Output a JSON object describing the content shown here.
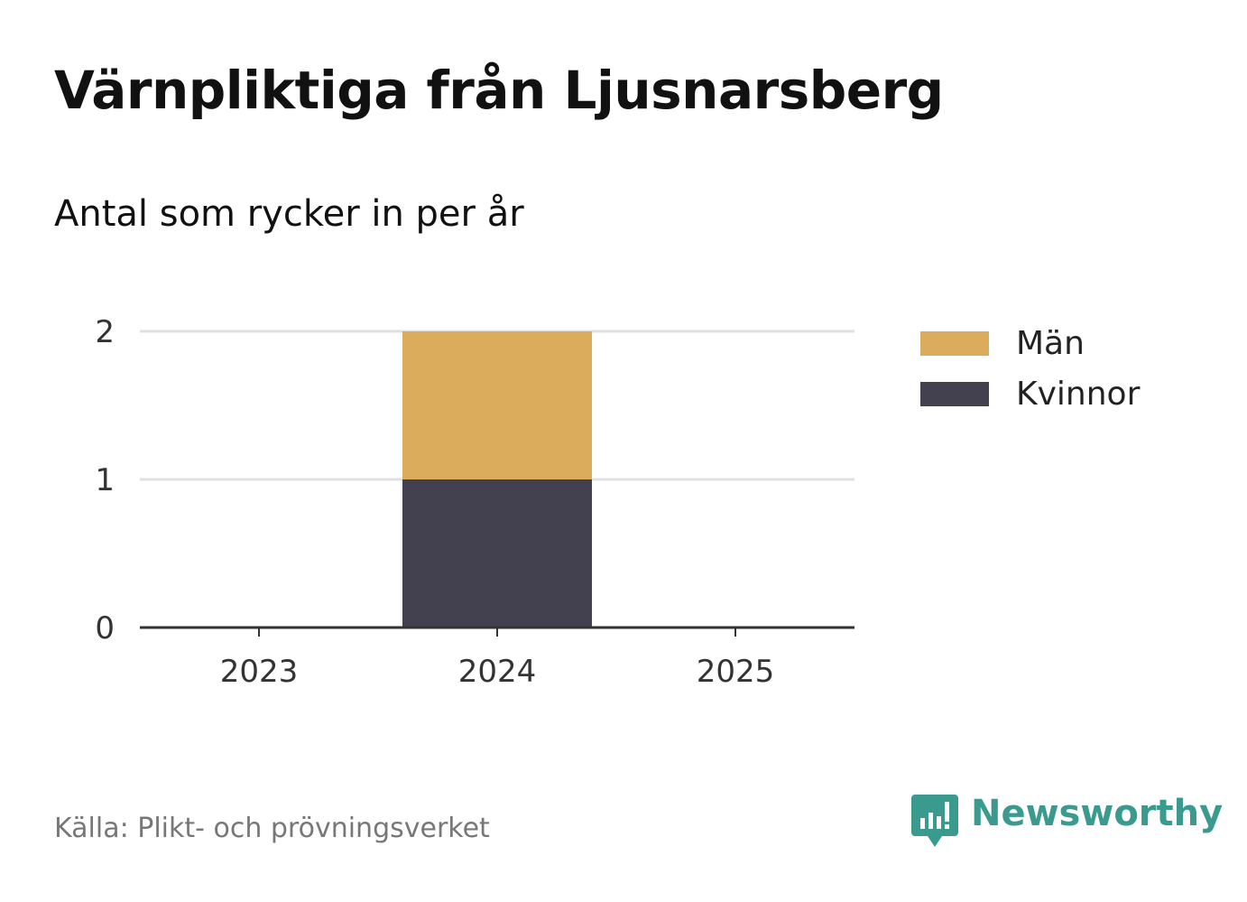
{
  "header": {
    "title": "Värnpliktiga från Ljusnarsberg",
    "subtitle": "Antal som rycker in per år"
  },
  "chart_data": {
    "type": "bar",
    "stacked": true,
    "categories": [
      "2023",
      "2024",
      "2025"
    ],
    "series": [
      {
        "name": "Kvinnor",
        "values": [
          0,
          1,
          0
        ],
        "color": "#43414f"
      },
      {
        "name": "Män",
        "values": [
          0,
          1,
          0
        ],
        "color": "#dbac5c"
      }
    ],
    "ylim": [
      0,
      2
    ],
    "yticks": [
      "0",
      "1",
      "2"
    ],
    "grid": true,
    "legend_position": "right"
  },
  "legend": {
    "items": [
      {
        "label": "Män",
        "color": "#dbac5c"
      },
      {
        "label": "Kvinnor",
        "color": "#43414f"
      }
    ]
  },
  "footer": {
    "source": "Källa: Plikt- och prövningsverket",
    "brand": "Newsworthy",
    "brand_color": "#3a9a8e",
    "logo_icon": "newsworthy-bar-chart-icon"
  }
}
